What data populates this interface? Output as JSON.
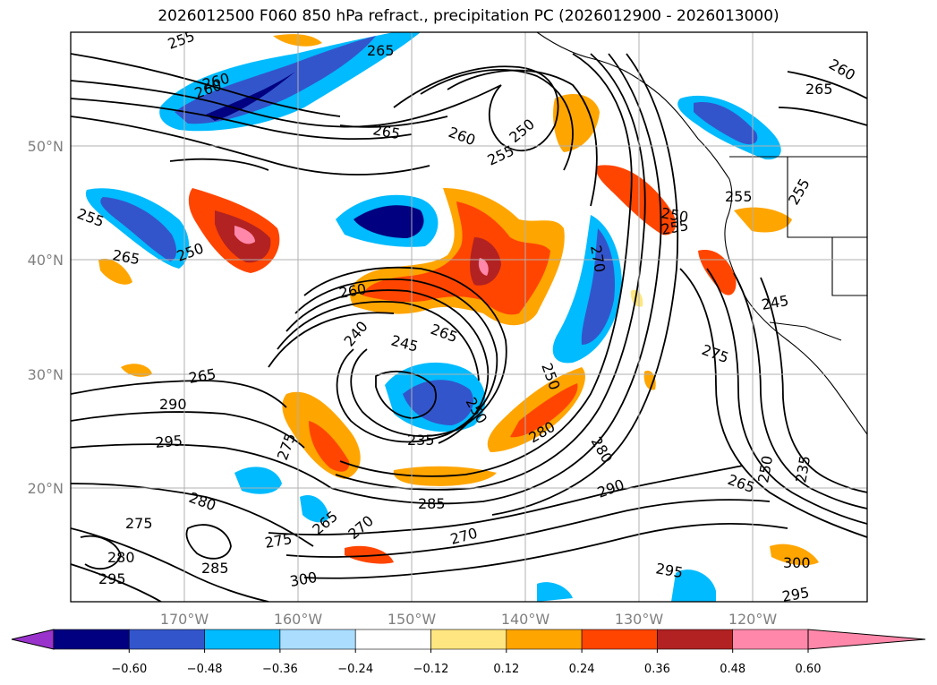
{
  "title": "2026012500 F060 850 hPa refract., precipitation PC (2026012900 - 2026013000)",
  "map": {
    "lat_labels": [
      "50°N",
      "40°N",
      "30°N",
      "20°N"
    ],
    "lon_labels": [
      "170°W",
      "160°W",
      "150°W",
      "140°W",
      "130°W",
      "120°W"
    ],
    "contour_levels": [
      "255",
      "260",
      "265",
      "260",
      "255",
      "250",
      "255",
      "265",
      "250",
      "260",
      "240",
      "245",
      "265",
      "250",
      "250",
      "250",
      "255",
      "270",
      "255",
      "265",
      "290",
      "295",
      "235",
      "280",
      "280",
      "275",
      "265",
      "270",
      "285",
      "275",
      "285",
      "280",
      "280",
      "295",
      "270",
      "300",
      "290",
      "275",
      "265",
      "250",
      "235",
      "295",
      "300",
      "295",
      "245",
      "255",
      "260",
      "265",
      "260",
      "265",
      "275"
    ]
  },
  "colorbar": {
    "colors": [
      "#9933cc",
      "#000080",
      "#3355cc",
      "#00bbff",
      "#aaddff",
      "#ffffff",
      "#ffe680",
      "#ffa500",
      "#ff4500",
      "#b22222",
      "#ff88aa",
      "#ff88aa"
    ],
    "tick_labels": [
      "−0.60",
      "−0.48",
      "−0.36",
      "−0.24",
      "−0.12",
      "0.12",
      "0.24",
      "0.36",
      "0.48",
      "0.60"
    ]
  }
}
